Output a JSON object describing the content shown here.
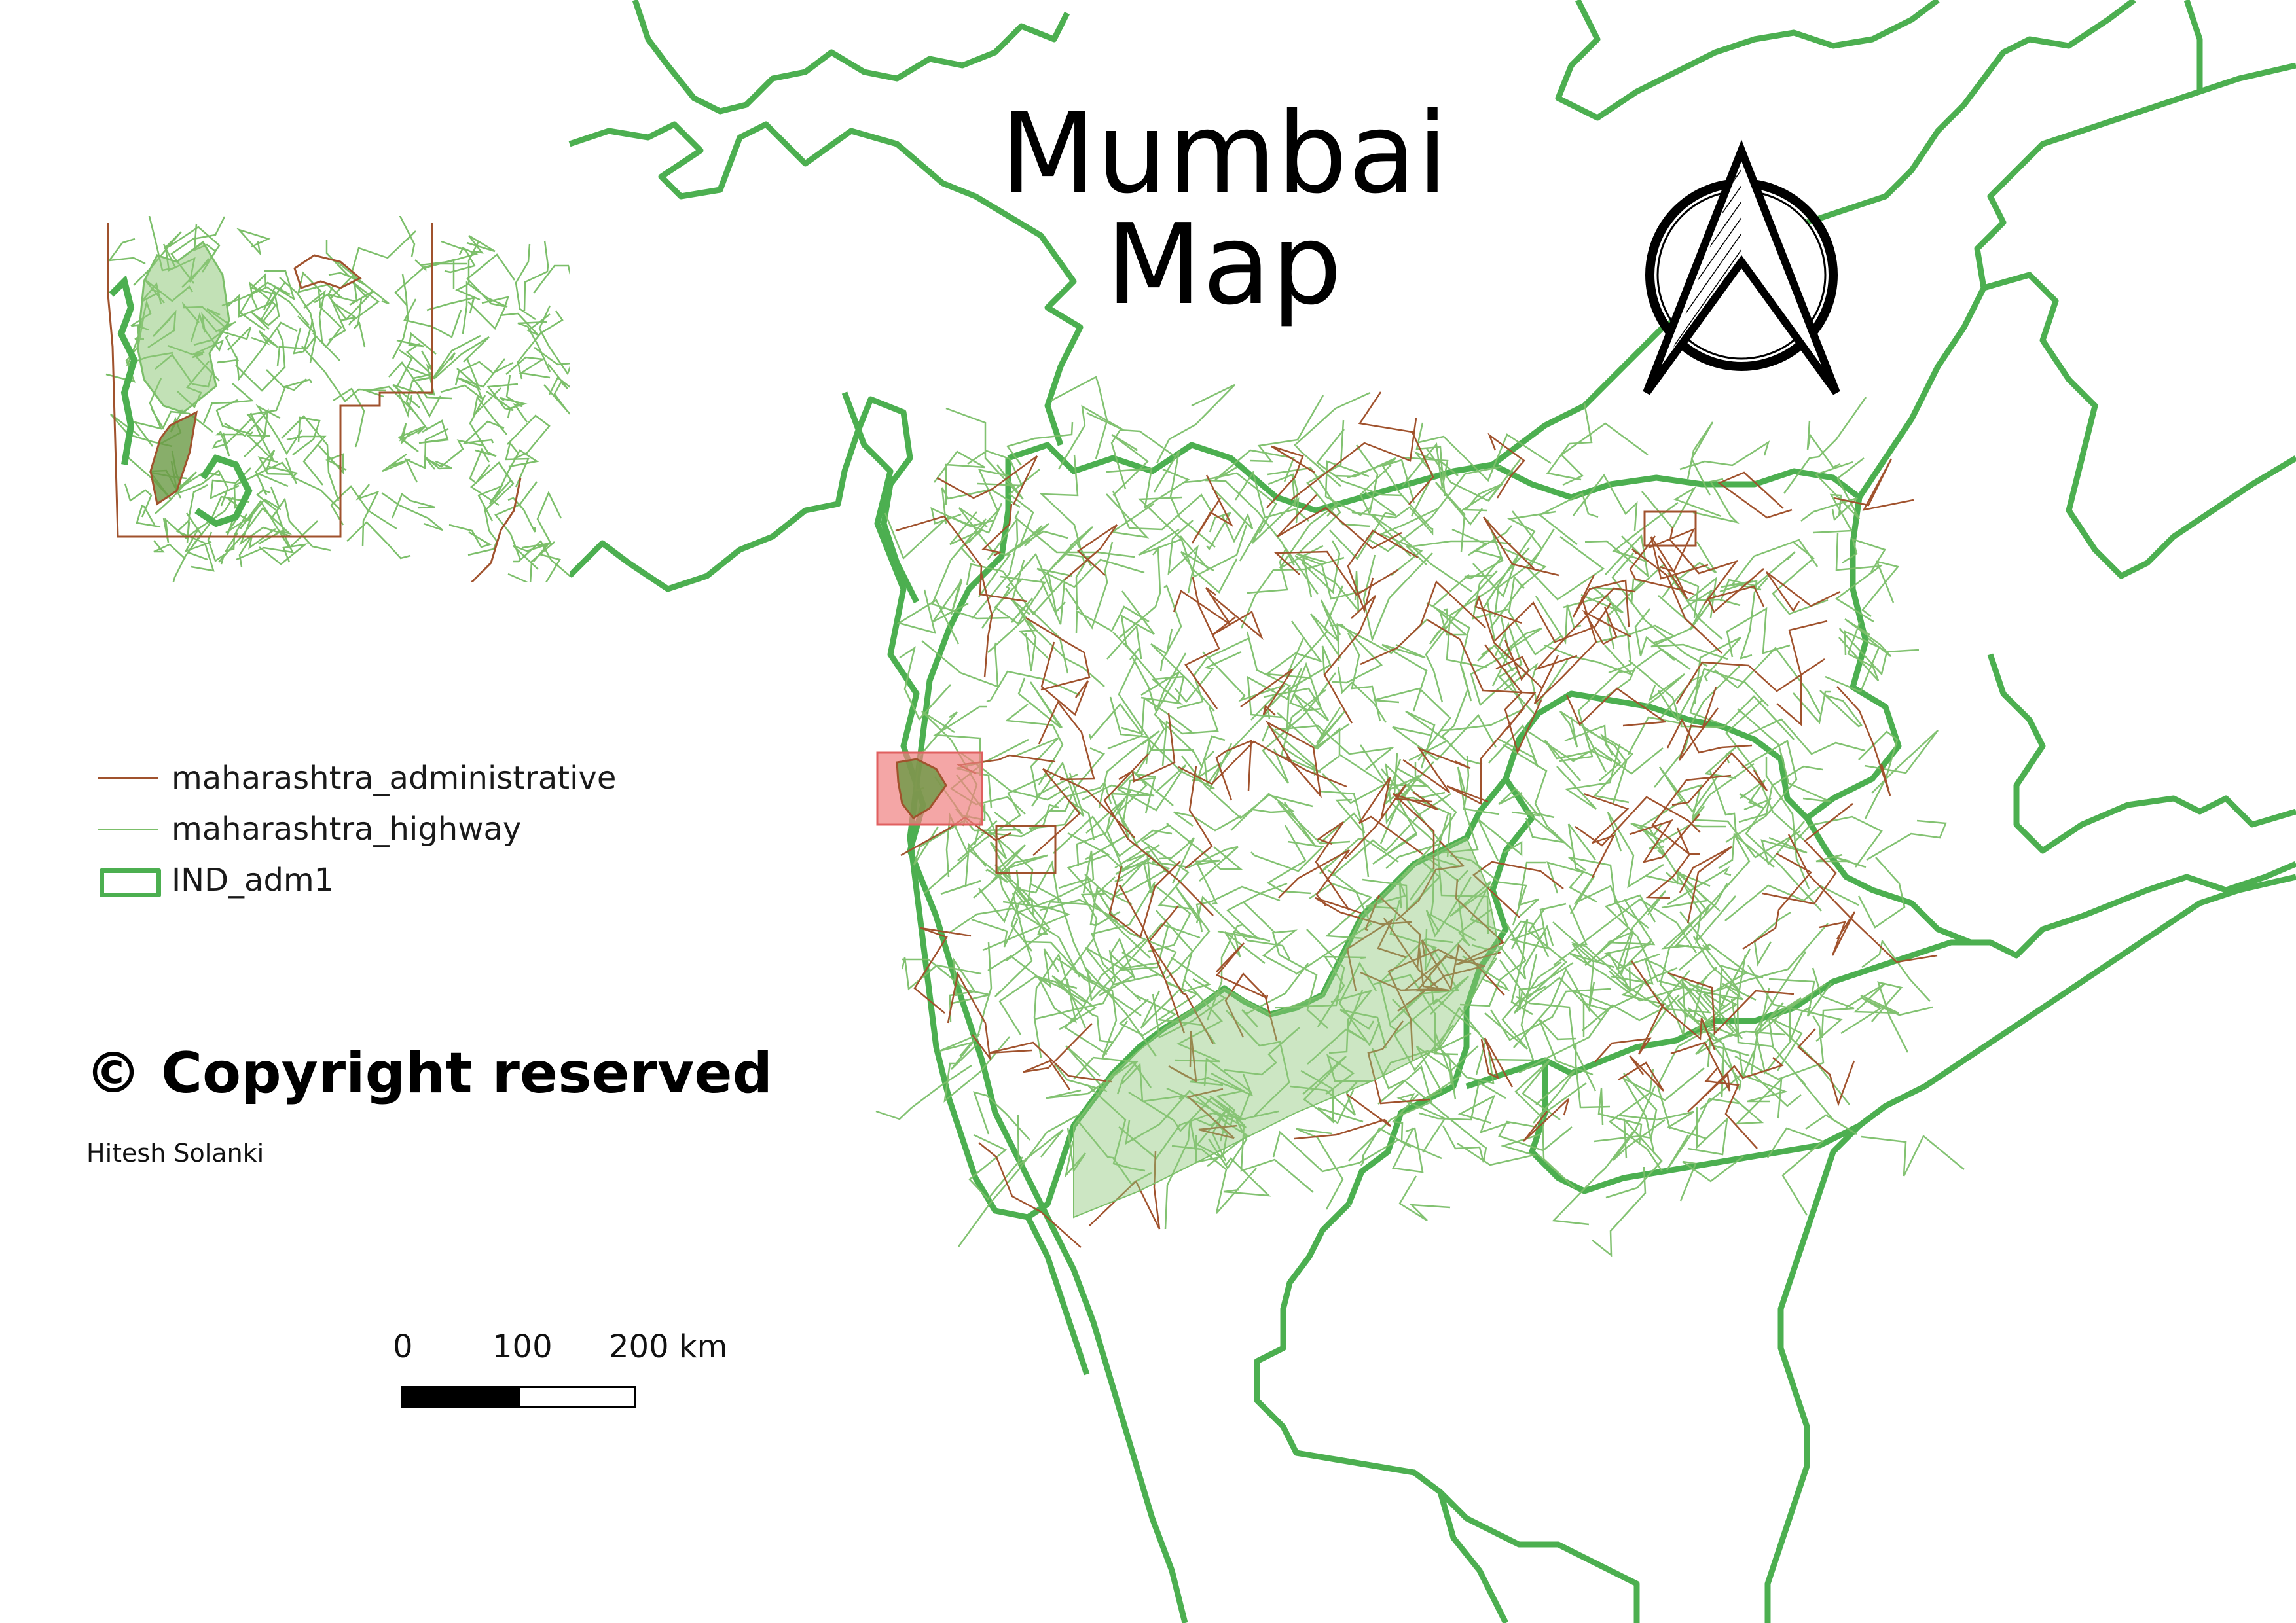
{
  "map": {
    "title": "Mumbai Map",
    "colors": {
      "boundary": "#4caf50",
      "highway": "#7cbf6a",
      "administrative": "#a0522d",
      "highlight": "#f08080"
    },
    "north_arrow_icon": "north-arrow-icon"
  },
  "legend": {
    "items": [
      {
        "label": "maharashtra_administrative",
        "style": "thin-line",
        "color": "#a0522d"
      },
      {
        "label": "maharashtra_highway",
        "style": "thin-line",
        "color": "#7cbf6a"
      },
      {
        "label": "IND_adm1",
        "style": "box",
        "color": "#4caf50"
      }
    ]
  },
  "credits": {
    "copyright": "© Copyright reserved",
    "author": "Hitesh Solanki"
  },
  "scalebar": {
    "ticks": [
      "0",
      "100",
      "200 km"
    ]
  }
}
